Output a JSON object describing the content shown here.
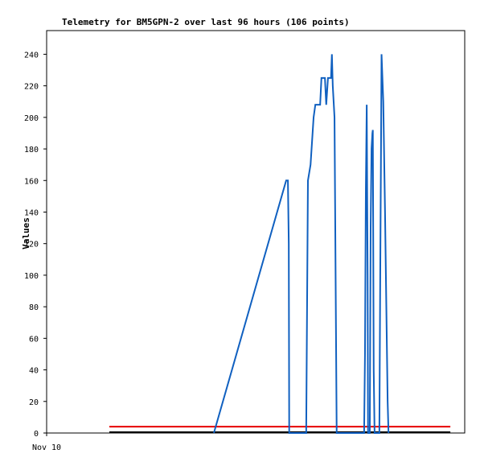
{
  "chart_data": {
    "type": "line",
    "title": "Telemetry for BM5GPN-2 over last 96 hours (106 points)",
    "y_label": "Values",
    "xlim": [
      0,
      96
    ],
    "xticks": [
      {
        "value": 0,
        "label": "Nov 10"
      }
    ],
    "ylim": [
      0,
      255
    ],
    "yticks": [
      0,
      20,
      40,
      60,
      80,
      100,
      120,
      140,
      160,
      180,
      200,
      220,
      240
    ],
    "series": [
      {
        "color": "#000000",
        "x": [
          14.4,
          92.7
        ],
        "values": [
          0.5,
          0.5
        ]
      },
      {
        "color": "#e60000",
        "x": [
          14.4,
          92.7
        ],
        "values": [
          4,
          4
        ]
      },
      {
        "color": "#1060c0",
        "x": [
          38.4,
          55.0,
          55.4,
          55.6,
          55.7,
          59.6,
          60.0,
          60.6,
          61.3,
          61.7,
          62.8,
          63.1,
          63.9,
          64.2,
          64.6,
          65.3,
          65.5,
          65.7,
          66.1,
          66.6,
          72.9,
          73.1,
          73.3,
          73.5,
          73.7,
          73.8,
          74.2,
          74.4,
          74.6,
          74.8,
          74.9,
          75.1,
          75.3,
          76.4,
          76.6,
          76.8,
          76.9,
          77.3,
          77.7,
          78.1,
          78.3,
          78.5
        ],
        "values": [
          0,
          160,
          160,
          120,
          0,
          0,
          160,
          170,
          200,
          208,
          208,
          225,
          225,
          208,
          225,
          225,
          240,
          220,
          200,
          0,
          0,
          50,
          155,
          208,
          100,
          0,
          0,
          130,
          180,
          190,
          192,
          40,
          0,
          0,
          100,
          190,
          240,
          210,
          140,
          60,
          20,
          0
        ]
      }
    ]
  }
}
